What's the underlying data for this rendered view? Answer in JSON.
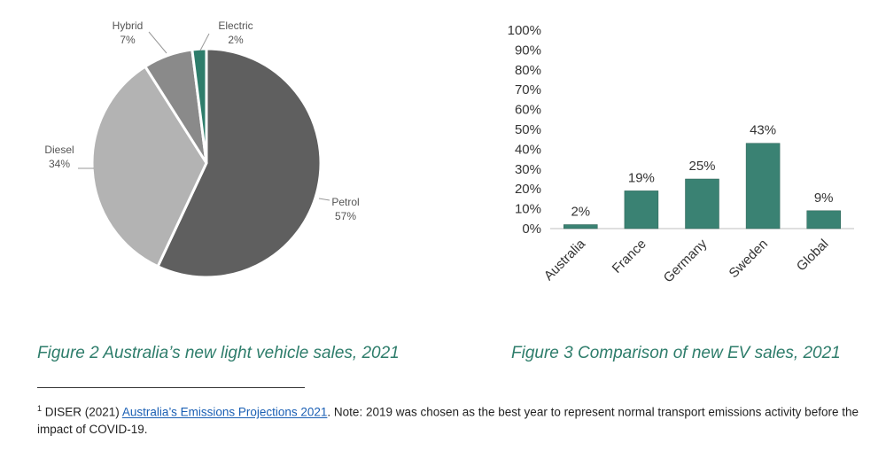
{
  "chart_data": [
    {
      "type": "pie",
      "slices": [
        {
          "label": "Petrol",
          "value": 57,
          "value_label": "57%",
          "color": "#5f5f5f"
        },
        {
          "label": "Diesel",
          "value": 34,
          "value_label": "34%",
          "color": "#b3b3b3"
        },
        {
          "label": "Hybrid",
          "value": 7,
          "value_label": "7%",
          "color": "#8a8a8a"
        },
        {
          "label": "Electric",
          "value": 2,
          "value_label": "2%",
          "color": "#2e7d6b"
        }
      ]
    },
    {
      "type": "bar",
      "categories": [
        "Australia",
        "France",
        "Germany",
        "Sweden",
        "Global"
      ],
      "values": [
        2,
        19,
        25,
        43,
        9
      ],
      "value_labels": [
        "2%",
        "19%",
        "25%",
        "43%",
        "9%"
      ],
      "ylim": [
        0,
        100
      ],
      "yticks": [
        "0%",
        "10%",
        "20%",
        "30%",
        "40%",
        "50%",
        "60%",
        "70%",
        "80%",
        "90%",
        "100%"
      ],
      "bar_color": "#3a8273",
      "grid": false
    }
  ],
  "captions": {
    "figure2": "Figure 2 Australia’s new light vehicle sales, 2021",
    "figure3": "Figure 3 Comparison of new EV sales, 2021"
  },
  "footnote": {
    "marker": "1",
    "prefix": " DISER (2021) ",
    "link_text": "Australia’s Emissions Projections 2021",
    "suffix": ". Note: 2019 was chosen as the best year to represent normal transport emissions activity before the impact of COVID-19."
  },
  "colors": {
    "caption": "#2e7d6b",
    "link": "#1a5fb4"
  }
}
